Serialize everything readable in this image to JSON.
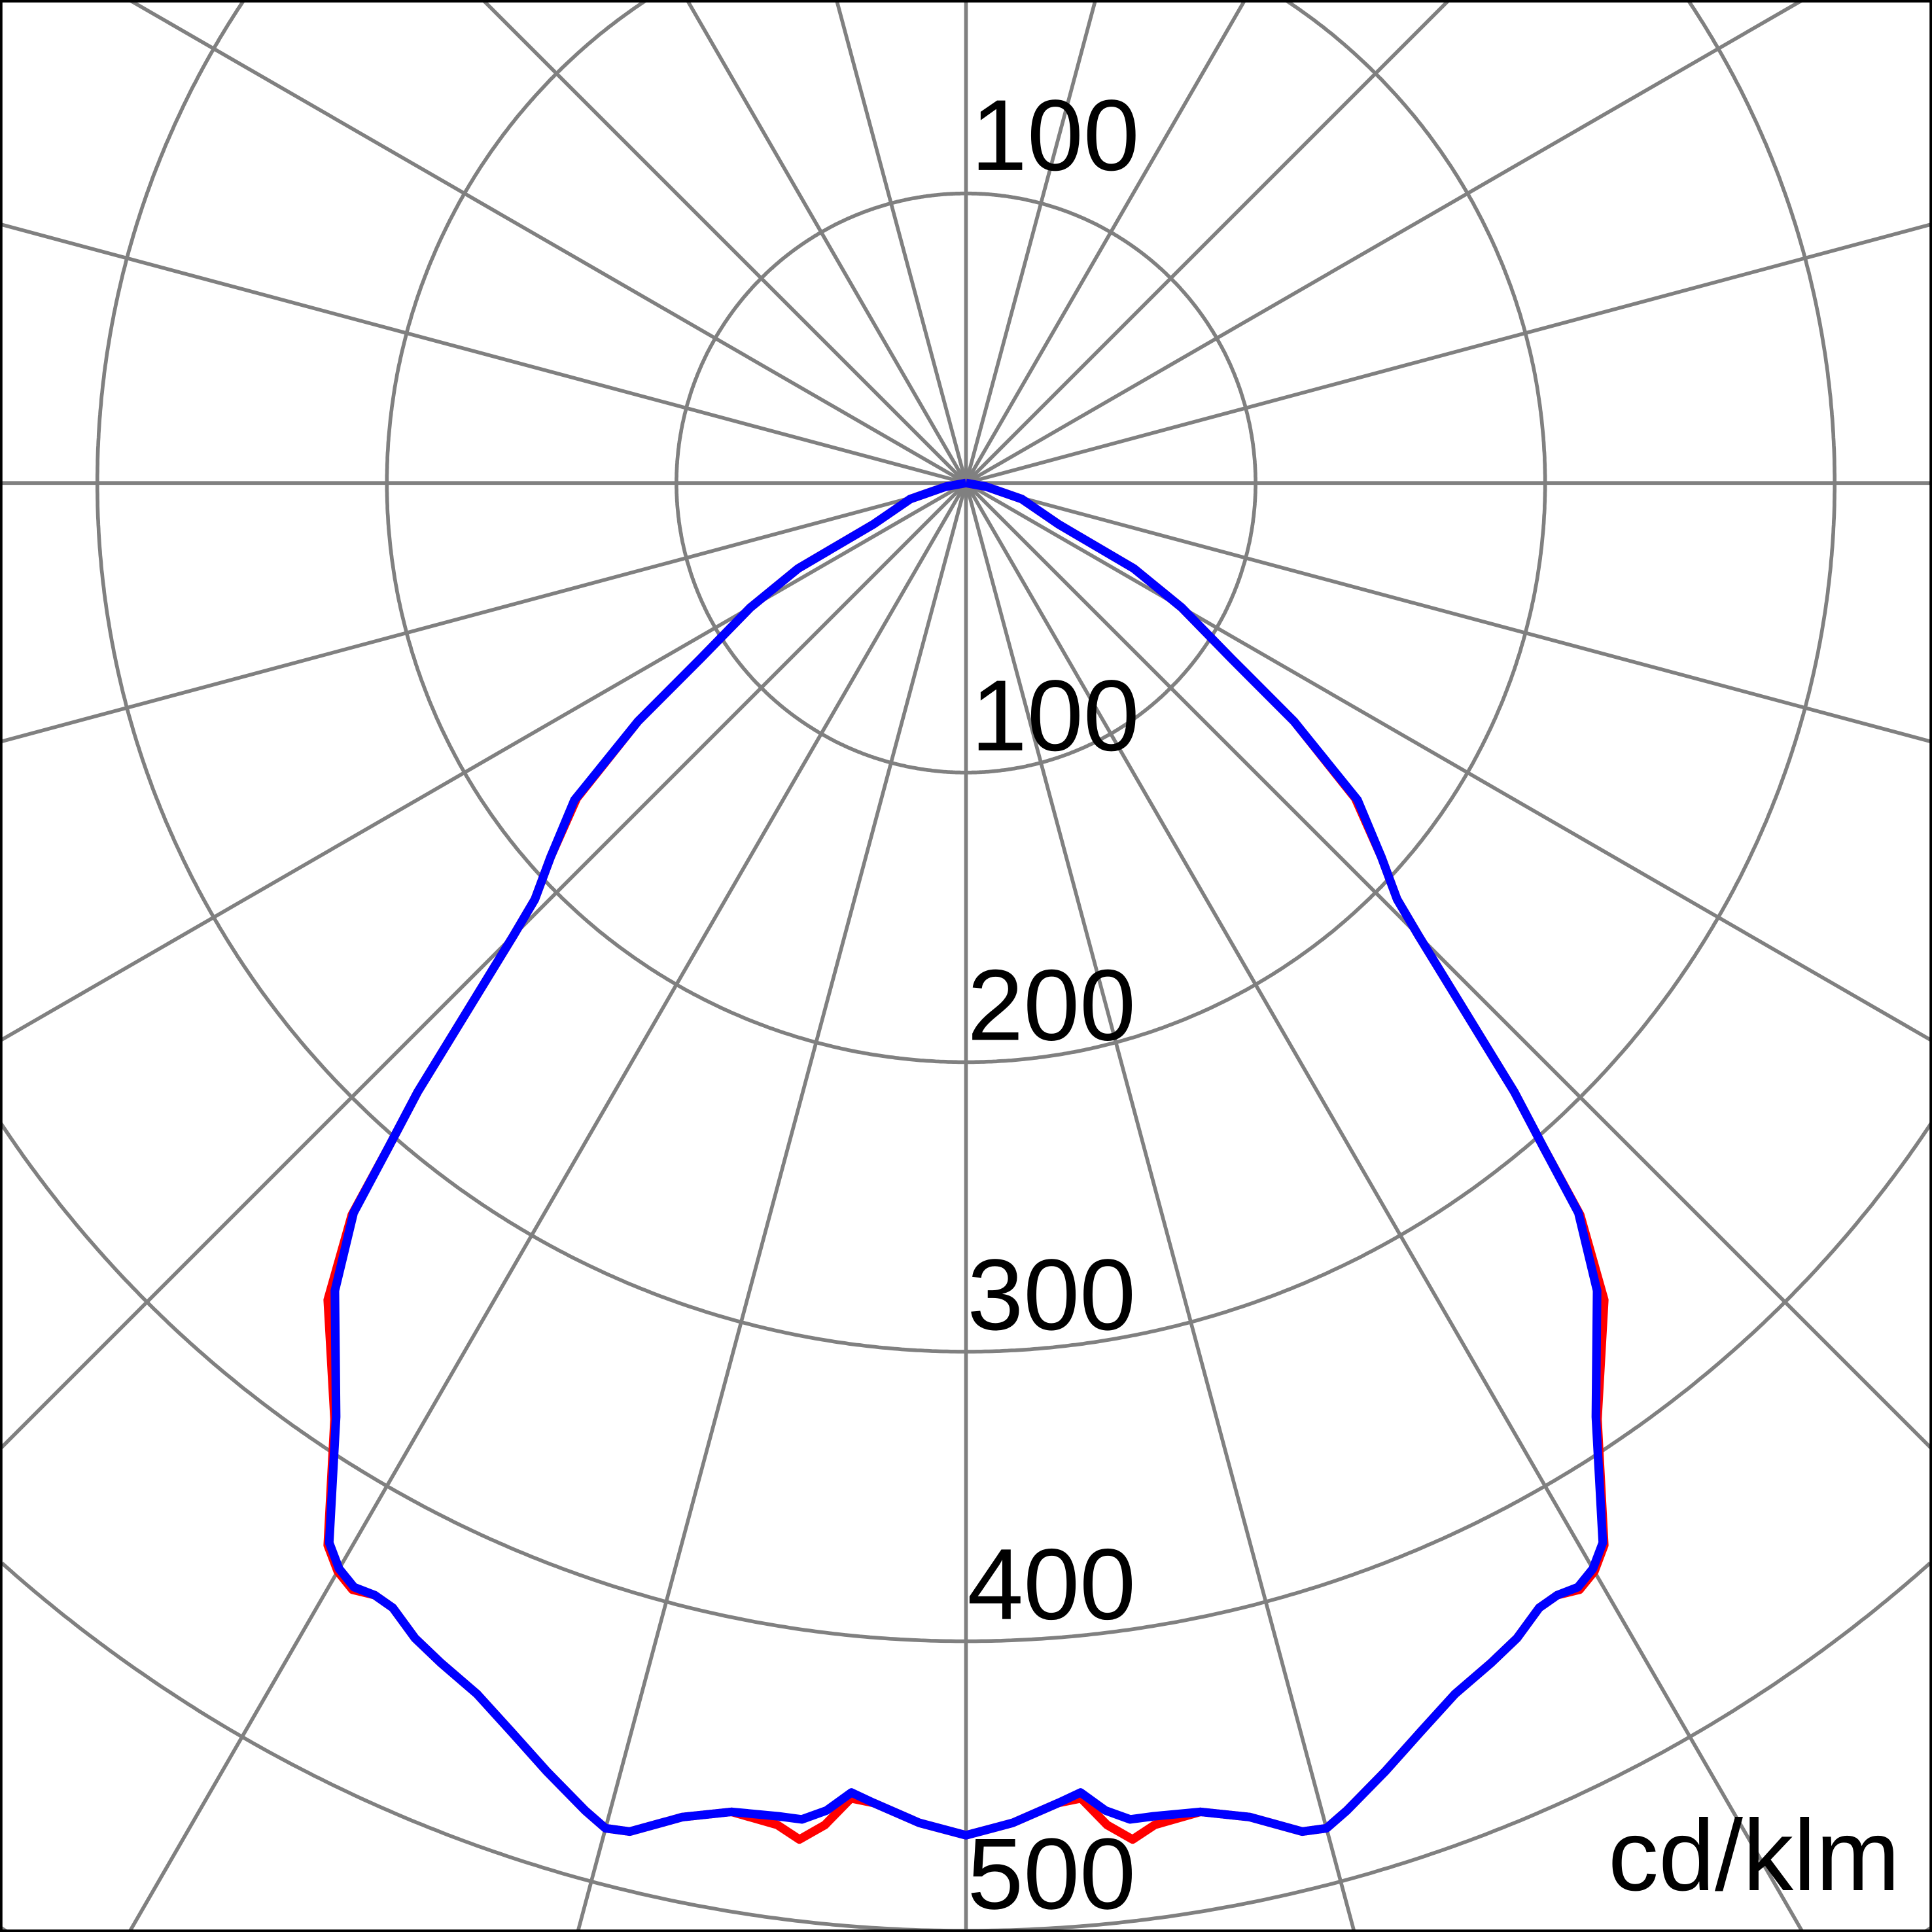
{
  "chart_data": {
    "type": "polar-line",
    "unit_label": "cd/klm",
    "radial_tick_labels": {
      "upper": [
        "100"
      ],
      "lower": [
        "100",
        "200",
        "300",
        "400",
        "500"
      ]
    },
    "rings": [
      100,
      200,
      300,
      400,
      500,
      600
    ],
    "radial_line_step_deg": 15,
    "grid": true,
    "symmetric": true,
    "angle_reference": "degrees from nadir (downward), mirrored left/right",
    "series": [
      {
        "color": "#ff0000",
        "angles": [
          0,
          2,
          4,
          5,
          6,
          7,
          8,
          10,
          12,
          14,
          15,
          16,
          18,
          20,
          22,
          24,
          25.5,
          27,
          28,
          29,
          30,
          31,
          34,
          38,
          40,
          41,
          42,
          45,
          46,
          48,
          51,
          54,
          56.5,
          60,
          63,
          66,
          74,
          80,
          90
        ],
        "values": [
          467,
          463,
          457,
          456,
          466,
          472,
          468,
          466,
          471,
          480,
          481,
          477,
          468,
          459,
          451,
          446,
          442,
          436,
          435,
          437,
          434,
          428,
          390,
          358,
          330,
          304,
          283,
          221,
          207,
          193,
          173,
          140,
          110,
          86,
          65,
          35,
          20,
          7,
          0
        ]
      },
      {
        "color": "#0000ff",
        "angles": [
          0,
          2,
          4,
          5,
          6,
          7,
          8,
          10,
          12,
          14,
          15,
          16,
          18,
          20,
          22,
          24,
          25.5,
          27,
          28,
          29,
          30,
          31,
          34,
          38,
          40,
          41,
          42,
          45,
          46,
          48,
          51,
          54,
          56.5,
          60,
          63,
          66,
          74,
          80,
          90
        ],
        "values": [
          467,
          463,
          457,
          454,
          461,
          465,
          465,
          466,
          471,
          480,
          481,
          477,
          468,
          459,
          451,
          446,
          442,
          436,
          435,
          436,
          433,
          427,
          389,
          354,
          329,
          304,
          283,
          221,
          207,
          193,
          174,
          140,
          110,
          86,
          65,
          35,
          20,
          7,
          0
        ]
      }
    ],
    "grid_color": "#808080"
  }
}
